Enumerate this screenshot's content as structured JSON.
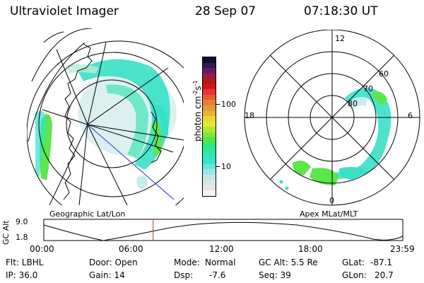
{
  "header": {
    "title": "Ultraviolet Imager",
    "date": "28 Sep 07",
    "time": "07:18:30 UT"
  },
  "left_panel": {
    "label": "Geographic Lat/Lon"
  },
  "right_panel": {
    "label": "Apex MLat/MLT",
    "mlt_labels": [
      "12",
      "18",
      "6",
      "0"
    ],
    "lat_labels": [
      "60",
      "70",
      "80"
    ]
  },
  "colorbar": {
    "unit_label": "photon cm",
    "unit_exp1": "-2",
    "unit_s": "s",
    "unit_exp2": "-1",
    "tick_100": "100",
    "tick_10": "10",
    "colors": [
      "#f5f5f5",
      "#e6e6e6",
      "#d9e6e6",
      "#bfe6e6",
      "#99e6e6",
      "#66e6d9",
      "#33e6cc",
      "#33e6b3",
      "#33e699",
      "#33e680",
      "#4de64d",
      "#80e633",
      "#b3e633",
      "#e6e633",
      "#e6d933",
      "#e6b333",
      "#e69933",
      "#e68033",
      "#e65a33",
      "#e63333",
      "#cc1a1a",
      "#b31a1a",
      "#991a4d",
      "#661a66",
      "#331a4d",
      "#0d0d33"
    ]
  },
  "altitude_plot": {
    "ylabel": "GC Alt",
    "ytick_top": "9.0",
    "ytick_bottom": "1.8",
    "x_labels": [
      "00:00",
      "06:00",
      "12:00",
      "18:00",
      "23:59"
    ],
    "current_time_hours": 7.31
  },
  "footer": {
    "row1": {
      "flt": "Flt: LBHL",
      "door": "Door: Open",
      "mode_label": "Mode:",
      "mode_value": "Normal",
      "gc_alt": "GC Alt: 5.5 Re",
      "glat_label": "GLat:",
      "glat_value": "-87.1"
    },
    "row2": {
      "ip": "IP: 36.0",
      "gain": "Gain: 14",
      "dsp_label": "Dsp:",
      "dsp_value": "-7.6",
      "seq": "Seq: 39",
      "glon_label": "GLon:",
      "glon_value": "20.7"
    }
  },
  "colors": {
    "aurora_cyan": "#38e0c8",
    "aurora_green": "#5ce64a",
    "aurora_light": "#c8ecec",
    "track_line": "#2828e0",
    "time_marker": "#c83232"
  }
}
